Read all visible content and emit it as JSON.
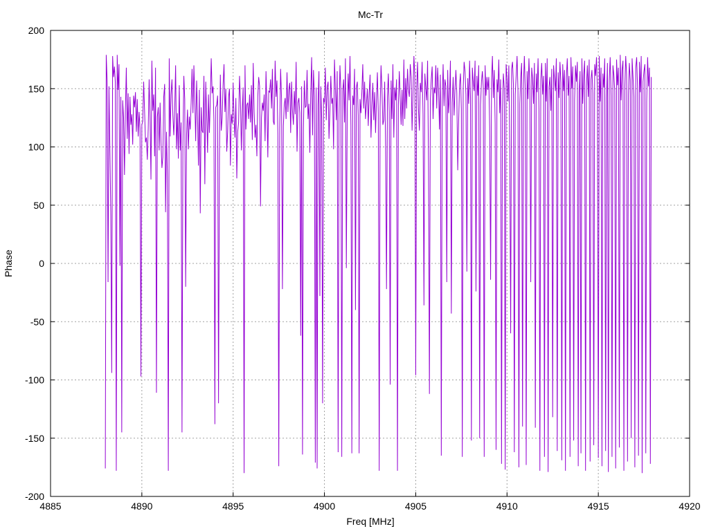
{
  "chart_data": {
    "type": "line",
    "title": "Mc-Tr",
    "xlabel": "Freq [MHz]",
    "ylabel": "Phase",
    "xlim": [
      4885,
      4920
    ],
    "ylim": [
      -200,
      200
    ],
    "x_ticks": [
      4885,
      4890,
      4895,
      4900,
      4905,
      4910,
      4915,
      4920
    ],
    "y_ticks": [
      -200,
      -150,
      -100,
      -50,
      0,
      50,
      100,
      150,
      200
    ],
    "grid": true,
    "legend": "none",
    "series_color": "#9400d3",
    "series": [
      {
        "x_start": 4888.0,
        "x_step": 0.05,
        "values": [
          -176,
          179,
          156,
          -16,
          152,
          98,
          42,
          -94,
          178,
          160,
          169,
          155,
          -178,
          179,
          149,
          171,
          -2,
          143,
          -145,
          140,
          125,
          76,
          131,
          168,
          107,
          146,
          94,
          143,
          119,
          128,
          102,
          144,
          134,
          147,
          113,
          141,
          109,
          130,
          116,
          -97,
          119,
          122,
          156,
          131,
          104,
          108,
          89,
          116,
          158,
          125,
          72,
          174,
          131,
          145,
          92,
          168,
          -111,
          126,
          134,
          97,
          138,
          104,
          82,
          91,
          143,
          154,
          44,
          113,
          75,
          -178,
          176,
          109,
          145,
          158,
          127,
          110,
          132,
          170,
          98,
          129,
          90,
          153,
          97,
          121,
          -145,
          102,
          161,
          141,
          -20,
          111,
          132,
          98,
          126,
          115,
          138,
          167,
          129,
          170,
          141,
          105,
          157,
          127,
          84,
          149,
          43,
          134,
          114,
          112,
          161,
          68,
          156,
          128,
          95,
          145,
          112,
          140,
          176,
          146,
          152,
          122,
          -138,
          134,
          136,
          144,
          -120,
          91,
          162,
          114,
          125,
          153,
          171,
          130,
          150,
          96,
          113,
          143,
          150,
          84,
          128,
          120,
          155,
          124,
          108,
          142,
          73,
          113,
          121,
          161,
          141,
          97,
          131,
          151,
          -180,
          170,
          115,
          136,
          138,
          124,
          145,
          121,
          153,
          106,
          172,
          130,
          108,
          119,
          92,
          143,
          160,
          152,
          49,
          125,
          138,
          131,
          145,
          105,
          165,
          134,
          91,
          148,
          147,
          158,
          133,
          167,
          122,
          119,
          174,
          143,
          157,
          110,
          -174,
          117,
          167,
          142,
          -22,
          118,
          136,
          142,
          124,
          164,
          130,
          149,
          155,
          112,
          156,
          131,
          119,
          148,
          128,
          173,
          96,
          138,
          142,
          129,
          -62,
          152,
          -164,
          116,
          157,
          134,
          135,
          166,
          124,
          137,
          95,
          146,
          177,
          110,
          166,
          143,
          -171,
          151,
          -176,
          136,
          165,
          -28,
          152,
          124,
          -120,
          142,
          138,
          168,
          123,
          151,
          156,
          107,
          131,
          161,
          137,
          142,
          98,
          175,
          150,
          123,
          165,
          -162,
          127,
          170,
          149,
          -166,
          148,
          158,
          121,
          176,
          -4,
          132,
          163,
          140,
          178,
          119,
          -163,
          144,
          136,
          167,
          -40,
          151,
          156,
          127,
          -163,
          141,
          129,
          147,
          171,
          133,
          156,
          124,
          137,
          150,
          118,
          146,
          162,
          108,
          136,
          155,
          123,
          147,
          112,
          140,
          164,
          129,
          -178,
          134,
          170,
          150,
          119,
          123,
          156,
          101,
          -22,
          143,
          163,
          130,
          -104,
          157,
          124,
          171,
          108,
          151,
          140,
          158,
          -178,
          136,
          165,
          142,
          119,
          149,
          118,
          175,
          124,
          159,
          133,
          167,
          149,
          143,
          171,
          160,
          114,
          146,
          178,
          161,
          -96,
          150,
          173,
          132,
          114,
          155,
          147,
          173,
          128,
          -36,
          163,
          151,
          140,
          174,
          84,
          -112,
          141,
          158,
          169,
          124,
          151,
          146,
          170,
          133,
          168,
          150,
          115,
          162,
          -165,
          139,
          171,
          135,
          158,
          152,
          -16,
          166,
          129,
          143,
          174,
          -43,
          138,
          160,
          127,
          149,
          166,
          146,
          80,
          121,
          153,
          163,
          132,
          -166,
          150,
          173,
          165,
          145,
          -7,
          159,
          137,
          174,
          142,
          -152,
          168,
          156,
          148,
          174,
          -24,
          161,
          144,
          170,
          -150,
          136,
          156,
          165,
          151,
          -166,
          170,
          144,
          160,
          149,
          160,
          117,
          -14,
          155,
          178,
          142,
          166,
          120,
          -160,
          158,
          147,
          175,
          129,
          158,
          -172,
          133,
          163,
          150,
          -177,
          171,
          159,
          139,
          170,
          97,
          -60,
          167,
          173,
          154,
          -162,
          145,
          161,
          178,
          148,
          -175,
          137,
          160,
          172,
          -140,
          153,
          178,
          149,
          -173,
          165,
          141,
          176,
          152,
          -16,
          168,
          159,
          137,
          172,
          -141,
          163,
          147,
          176,
          131,
          -178,
          158,
          172,
          145,
          161,
          -166,
          172,
          139,
          176,
          -179,
          151,
          160,
          131,
          167,
          -132,
          170,
          158,
          148,
          176,
          -161,
          164,
          142,
          173,
          155,
          -169,
          171,
          148,
          166,
          -178,
          159,
          176,
          144,
          161,
          -166,
          177,
          150,
          169,
          -152,
          140,
          170,
          156,
          173,
          -174,
          147,
          165,
          -163,
          176,
          137,
          162,
          174,
          -178,
          152,
          170,
          143,
          175,
          -170,
          158,
          166,
          146,
          -156,
          171,
          161,
          177,
          149,
          -167,
          178,
          139,
          168,
          -174,
          163,
          151,
          176,
          -161,
          142,
          172,
          -179,
          157,
          177,
          144,
          -166,
          170,
          162,
          148,
          -176,
          175,
          153,
          168,
          -158,
          179,
          140,
          166,
          174,
          -178,
          150,
          178,
          162,
          -170,
          145,
          172,
          157,
          -150,
          176,
          160,
          143,
          -175,
          168,
          177,
          150,
          -165,
          173,
          147,
          178,
          -180,
          156,
          165,
          171,
          -163,
          139,
          177,
          152,
          168,
          -172,
          160
        ]
      }
    ]
  }
}
